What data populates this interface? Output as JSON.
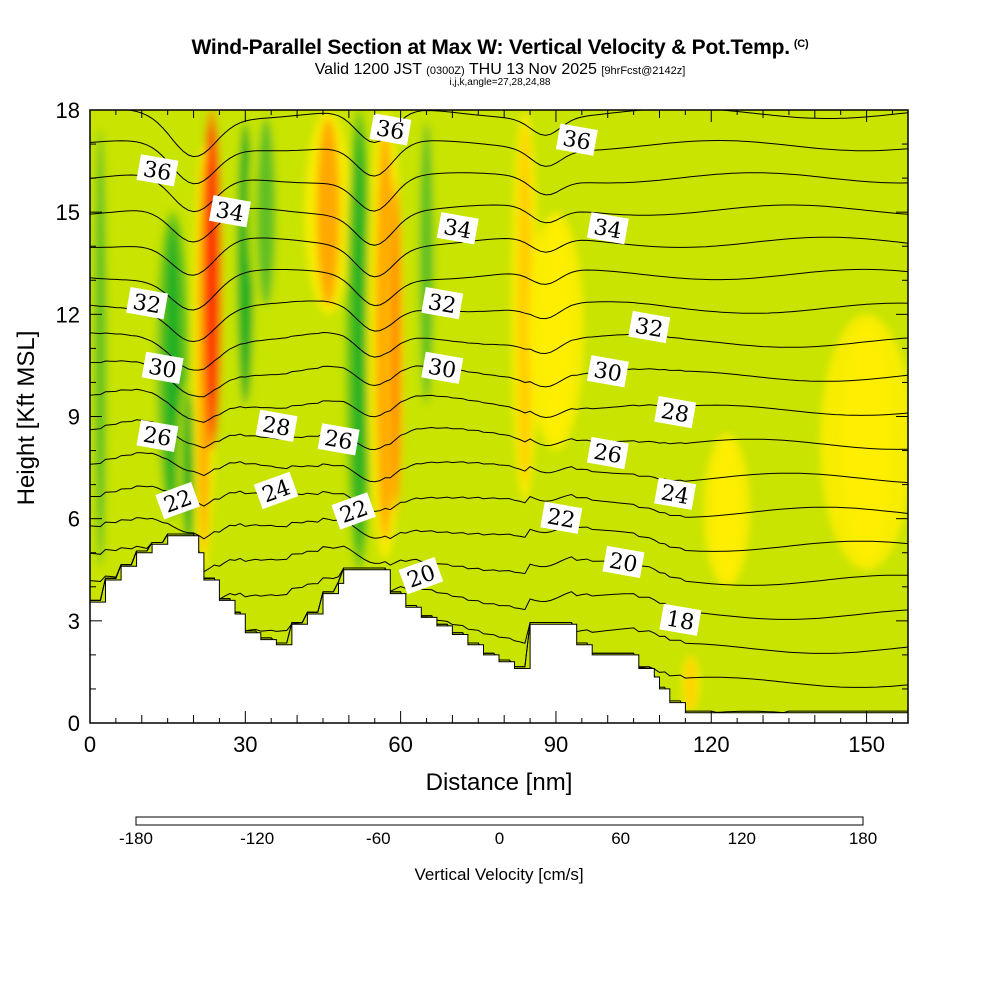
{
  "header": {
    "title": "Wind-Parallel Section at Max W: Vertical Velocity & Pot.Temp.",
    "copyright": "(C)",
    "valid_prefix": "Valid 1200 JST",
    "valid_utc": "(0300Z)",
    "valid_date": "THU 13 Nov 2025",
    "forecast": "[9hrFcst@2142z]",
    "ijk": "i,j,k,angle=27,28,24,88"
  },
  "chart_data": {
    "type": "heatmap",
    "xlabel": "Distance [nm]",
    "ylabel": "Height [Kft MSL]",
    "xlim": [
      0,
      158
    ],
    "ylim": [
      0,
      18
    ],
    "x_ticks": [
      "0",
      "30",
      "60",
      "90",
      "120",
      "150"
    ],
    "y_ticks": [
      "0",
      "3",
      "6",
      "9",
      "12",
      "15",
      "18"
    ],
    "colorbar": {
      "title": "Vertical Velocity [cm/s]",
      "levels": [
        -180,
        -160,
        -140,
        -120,
        -100,
        -80,
        -60,
        -40,
        -20,
        0,
        20,
        40,
        60,
        80,
        100,
        120,
        140,
        160,
        180
      ],
      "tick_labels": [
        "-180",
        "-120",
        "-60",
        "0",
        "60",
        "120",
        "180"
      ],
      "colors": [
        "#0000ff",
        "#0050ff",
        "#00a0f0",
        "#00e8e8",
        "#00d8a0",
        "#00c060",
        "#20b020",
        "#60c020",
        "#c8e400",
        "#ffee00",
        "#ffcc00",
        "#ffa800",
        "#ff8000",
        "#ff5000",
        "#ff1800",
        "#d80030",
        "#a00060",
        "#600080"
      ]
    },
    "terrain": [
      [
        0,
        3.55
      ],
      [
        3,
        3.55
      ],
      [
        3,
        4.2
      ],
      [
        6,
        4.2
      ],
      [
        6,
        4.6
      ],
      [
        9,
        4.6
      ],
      [
        9,
        5.0
      ],
      [
        12,
        5.0
      ],
      [
        12,
        5.25
      ],
      [
        15,
        5.25
      ],
      [
        15,
        5.5
      ],
      [
        18,
        5.5
      ],
      [
        21,
        5.5
      ],
      [
        21,
        5.0
      ],
      [
        22,
        5.0
      ],
      [
        22,
        4.2
      ],
      [
        25,
        4.2
      ],
      [
        25,
        3.6
      ],
      [
        28,
        3.6
      ],
      [
        28,
        3.2
      ],
      [
        30,
        3.2
      ],
      [
        30,
        2.65
      ],
      [
        33,
        2.65
      ],
      [
        33,
        2.45
      ],
      [
        36,
        2.45
      ],
      [
        36,
        2.3
      ],
      [
        39,
        2.3
      ],
      [
        39,
        2.9
      ],
      [
        42,
        2.9
      ],
      [
        42,
        3.2
      ],
      [
        45,
        3.2
      ],
      [
        45,
        3.8
      ],
      [
        48,
        3.8
      ],
      [
        48,
        4.1
      ],
      [
        49,
        4.1
      ],
      [
        49,
        4.5
      ],
      [
        52,
        4.5
      ],
      [
        55,
        4.5
      ],
      [
        58,
        4.5
      ],
      [
        58,
        3.8
      ],
      [
        61,
        3.8
      ],
      [
        61,
        3.4
      ],
      [
        64,
        3.4
      ],
      [
        64,
        3.1
      ],
      [
        67,
        3.1
      ],
      [
        67,
        2.85
      ],
      [
        70,
        2.85
      ],
      [
        70,
        2.6
      ],
      [
        73,
        2.6
      ],
      [
        73,
        2.3
      ],
      [
        76,
        2.3
      ],
      [
        76,
        2.0
      ],
      [
        79,
        2.0
      ],
      [
        79,
        1.8
      ],
      [
        82,
        1.8
      ],
      [
        82,
        1.6
      ],
      [
        85,
        1.6
      ],
      [
        85,
        2.9
      ],
      [
        88,
        2.9
      ],
      [
        91,
        2.9
      ],
      [
        94,
        2.9
      ],
      [
        94,
        2.3
      ],
      [
        97,
        2.3
      ],
      [
        97,
        2.0
      ],
      [
        100,
        2.0
      ],
      [
        103,
        2.0
      ],
      [
        106,
        2.0
      ],
      [
        106,
        1.6
      ],
      [
        109,
        1.6
      ],
      [
        109,
        1.35
      ],
      [
        110,
        1.35
      ],
      [
        110,
        1.0
      ],
      [
        112,
        1.0
      ],
      [
        112,
        0.6
      ],
      [
        115,
        0.6
      ],
      [
        115,
        0.3
      ],
      [
        118,
        0.3
      ],
      [
        158,
        0.3
      ]
    ],
    "w_bands": [
      {
        "x": 2,
        "y0": 4.0,
        "y1": 18,
        "w": -35,
        "width": 2.5
      },
      {
        "x": 11,
        "y0": 5.0,
        "y1": 13,
        "w": -15,
        "width": 3
      },
      {
        "x": 16,
        "y0": 6.0,
        "y1": 15,
        "w": -55,
        "width": 3.5
      },
      {
        "x": 19,
        "y0": 5.0,
        "y1": 10,
        "w": -50,
        "width": 2.5
      },
      {
        "x": 22,
        "y0": 4.5,
        "y1": 17,
        "w": 55,
        "width": 2.5
      },
      {
        "x": 23.5,
        "y0": 8.0,
        "y1": 18,
        "w": 115,
        "width": 2.2
      },
      {
        "x": 30,
        "y0": 9.0,
        "y1": 18,
        "w": -45,
        "width": 3.5
      },
      {
        "x": 34,
        "y0": 12.0,
        "y1": 18,
        "w": -30,
        "width": 4
      },
      {
        "x": 46,
        "y0": 12.0,
        "y1": 18,
        "w": 40,
        "width": 5
      },
      {
        "x": 52,
        "y0": 4.5,
        "y1": 18,
        "w": -55,
        "width": 2.8
      },
      {
        "x": 57,
        "y0": 4.8,
        "y1": 18,
        "w": 50,
        "width": 4
      },
      {
        "x": 59,
        "y0": 6.0,
        "y1": 16,
        "w": 75,
        "width": 1.8
      },
      {
        "x": 65,
        "y0": 9.0,
        "y1": 18,
        "w": -25,
        "width": 3
      },
      {
        "x": 73,
        "y0": 10.5,
        "y1": 16,
        "w": -20,
        "width": 2.5
      },
      {
        "x": 84,
        "y0": 6.5,
        "y1": 18,
        "w": 20,
        "width": 3
      },
      {
        "x": 90,
        "y0": 8.0,
        "y1": 15,
        "w": 10,
        "width": 6
      },
      {
        "x": 116,
        "y0": 0.3,
        "y1": 2.0,
        "w": 20,
        "width": 2
      },
      {
        "x": 123,
        "y0": 4.0,
        "y1": 8.5,
        "w": 10,
        "width": 5
      },
      {
        "x": 150,
        "y0": 4.5,
        "y1": 12,
        "w": 15,
        "width": 10
      }
    ],
    "theta_levels": [
      18,
      19,
      20,
      21,
      22,
      23,
      24,
      25,
      26,
      27,
      28,
      29,
      30,
      31,
      32,
      33,
      34,
      35,
      36
    ],
    "contour_labels": [
      {
        "text": "36",
        "x": 13,
        "y": 16.2
      },
      {
        "text": "34",
        "x": 27,
        "y": 15.0
      },
      {
        "text": "36",
        "x": 58,
        "y": 17.4
      },
      {
        "text": "36",
        "x": 94,
        "y": 17.1
      },
      {
        "text": "34",
        "x": 71,
        "y": 14.5
      },
      {
        "text": "34",
        "x": 100,
        "y": 14.5
      },
      {
        "text": "32",
        "x": 11,
        "y": 12.3
      },
      {
        "text": "32",
        "x": 68,
        "y": 12.3
      },
      {
        "text": "32",
        "x": 108,
        "y": 11.6
      },
      {
        "text": "30",
        "x": 14,
        "y": 10.4
      },
      {
        "text": "30",
        "x": 68,
        "y": 10.4
      },
      {
        "text": "30",
        "x": 100,
        "y": 10.3
      },
      {
        "text": "28",
        "x": 36,
        "y": 8.7
      },
      {
        "text": "28",
        "x": 113,
        "y": 9.1
      },
      {
        "text": "26",
        "x": 13,
        "y": 8.4
      },
      {
        "text": "26",
        "x": 48,
        "y": 8.3
      },
      {
        "text": "26",
        "x": 100,
        "y": 7.9
      },
      {
        "text": "24",
        "x": 36,
        "y": 6.8
      },
      {
        "text": "24",
        "x": 113,
        "y": 6.7
      },
      {
        "text": "22",
        "x": 17,
        "y": 6.5
      },
      {
        "text": "22",
        "x": 51,
        "y": 6.2
      },
      {
        "text": "22",
        "x": 91,
        "y": 6.0
      },
      {
        "text": "20",
        "x": 64,
        "y": 4.3
      },
      {
        "text": "20",
        "x": 103,
        "y": 4.7
      },
      {
        "text": "18",
        "x": 114,
        "y": 3.0
      }
    ]
  }
}
